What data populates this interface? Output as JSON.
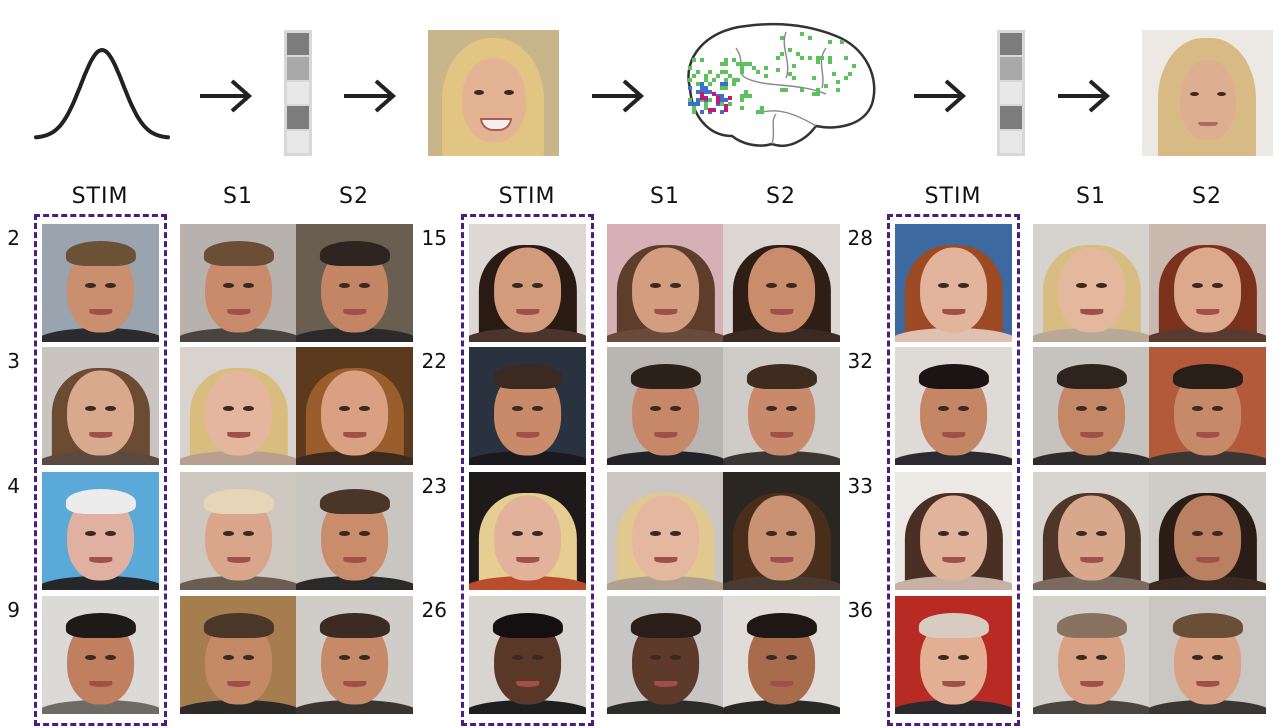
{
  "column_labels": {
    "stim": "STIM",
    "s1": "S1",
    "s2": "S2"
  },
  "colors": {
    "stim_box": "#4b1d80",
    "curve": "#222222",
    "brain_outline": "#333333",
    "voxel_green": "#5cc35c",
    "voxel_blue": "#3b6fd1",
    "voxel_magenta": "#c2187a"
  },
  "pipeline": {
    "latent_cells_1": [
      "#7c7c7c",
      "#a9a9a9",
      "#e8e8e8",
      "#7c7c7c",
      "#e8e8e8"
    ],
    "latent_cells_2": [
      "#7c7c7c",
      "#a9a9a9",
      "#e8e8e8",
      "#7c7c7c",
      "#e8e8e8"
    ]
  },
  "groups": [
    {
      "rows": [
        {
          "label": "2",
          "stim": {
            "bg": "#9aa4ae",
            "skin": "#c98f6e",
            "hair": "#6b5236",
            "long": false,
            "shirt": "#2b2b30"
          },
          "s1": {
            "bg": "#b7b2ad",
            "skin": "#c88c6c",
            "hair": "#6a4e35",
            "long": false,
            "shirt": "#4a4440"
          },
          "s2": {
            "bg": "#6a5e50",
            "skin": "#c38564",
            "hair": "#2e2520",
            "long": false,
            "shirt": "#2a2a2a"
          }
        },
        {
          "label": "3",
          "stim": {
            "bg": "#c9c4bf",
            "skin": "#d8a98c",
            "hair": "#6b4b32",
            "long": true,
            "shirt": "#5a4a40"
          },
          "s1": {
            "bg": "#d8d3cf",
            "skin": "#e3b69d",
            "hair": "#d8bd7e",
            "long": true,
            "shirt": "#b8a090"
          },
          "s2": {
            "bg": "#5b3a1e",
            "skin": "#d9a182",
            "hair": "#9a5d2c",
            "long": true,
            "shirt": "#3a2a20"
          }
        },
        {
          "label": "4",
          "stim": {
            "bg": "#5aa9d8",
            "skin": "#e0b0a0",
            "hair": "#ececec",
            "long": false,
            "shirt": "#25272b"
          },
          "s1": {
            "bg": "#cfc8c0",
            "skin": "#d9a68c",
            "hair": "#e6d6b8",
            "long": false,
            "shirt": "#6b5d52"
          },
          "s2": {
            "bg": "#c9c6c2",
            "skin": "#c98d6c",
            "hair": "#4a3626",
            "long": false,
            "shirt": "#2a2a2a"
          }
        },
        {
          "label": "9",
          "stim": {
            "bg": "#dcdad7",
            "skin": "#c08060",
            "hair": "#1e1a18",
            "long": false,
            "shirt": "#6e6a66"
          },
          "s1": {
            "bg": "#a67d4f",
            "skin": "#c48a66",
            "hair": "#4a3728",
            "long": false,
            "shirt": "#2c2a28"
          },
          "s2": {
            "bg": "#d0ccc8",
            "skin": "#c68a68",
            "hair": "#3b2b22",
            "long": false,
            "shirt": "#3a3430"
          }
        }
      ]
    },
    {
      "rows": [
        {
          "label": "15",
          "stim": {
            "bg": "#ded8d4",
            "skin": "#d29c7c",
            "hair": "#2a1a14",
            "long": true,
            "shirt": "#4a342c"
          },
          "s1": {
            "bg": "#d6b0b4",
            "skin": "#d39e80",
            "hair": "#5e3e2a",
            "long": true,
            "shirt": "#6a4a3a"
          },
          "s2": {
            "bg": "#dcd6d2",
            "skin": "#c98d6c",
            "hair": "#2e1e16",
            "long": true,
            "shirt": "#3a2a22"
          }
        },
        {
          "label": "22",
          "stim": {
            "bg": "#2a3240",
            "skin": "#c88a68",
            "hair": "#3a2a22",
            "long": false,
            "shirt": "#1a1a1e"
          },
          "s1": {
            "bg": "#b9b6b2",
            "skin": "#c68868",
            "hair": "#2c221c",
            "long": false,
            "shirt": "#222428"
          },
          "s2": {
            "bg": "#cfcbc7",
            "skin": "#c88a6a",
            "hair": "#3e2c20",
            "long": false,
            "shirt": "#3a3633"
          }
        },
        {
          "label": "23",
          "stim": {
            "bg": "#1f1a1a",
            "skin": "#e2b39a",
            "hair": "#e6cd92",
            "long": true,
            "shirt": "#b84c2c"
          },
          "s1": {
            "bg": "#cbc6c2",
            "skin": "#e3b89e",
            "hair": "#e0c890",
            "long": true,
            "shirt": "#b0a090"
          },
          "s2": {
            "bg": "#2a2622",
            "skin": "#c99272",
            "hair": "#4a2e1c",
            "long": true,
            "shirt": "#4a3a30"
          }
        },
        {
          "label": "26",
          "stim": {
            "bg": "#d8d4d0",
            "skin": "#5a3828",
            "hair": "#151010",
            "long": false,
            "shirt": "#1e1e20"
          },
          "s1": {
            "bg": "#c8c6c4",
            "skin": "#5e3a2a",
            "hair": "#2a1e18",
            "long": false,
            "shirt": "#2e2c2a"
          },
          "s2": {
            "bg": "#e0dcd8",
            "skin": "#a86c4c",
            "hair": "#1e1814",
            "long": false,
            "shirt": "#2a2826"
          }
        }
      ]
    },
    {
      "rows": [
        {
          "label": "28",
          "stim": {
            "bg": "#3c6aa0",
            "skin": "#e2b49c",
            "hair": "#9c4a24",
            "long": true,
            "shirt": "#e0c0b0"
          },
          "s1": {
            "bg": "#d6d2ce",
            "skin": "#e3b89c",
            "hair": "#d8bd82",
            "long": true,
            "shirt": "#b8a898"
          },
          "s2": {
            "bg": "#c8b8ae",
            "skin": "#dca98c",
            "hair": "#7a321c",
            "long": true,
            "shirt": "#5a3a2c"
          }
        },
        {
          "label": "32",
          "stim": {
            "bg": "#dedad6",
            "skin": "#c48664",
            "hair": "#1a1414",
            "long": false,
            "shirt": "#2a2a30"
          },
          "s1": {
            "bg": "#c6c2be",
            "skin": "#c48866",
            "hair": "#2e241e",
            "long": false,
            "shirt": "#2e2c2a"
          },
          "s2": {
            "bg": "#b25a3a",
            "skin": "#c68a68",
            "hair": "#2a1e18",
            "long": false,
            "shirt": "#3a3633"
          }
        },
        {
          "label": "33",
          "stim": {
            "bg": "#ece8e4",
            "skin": "#e0b49a",
            "hair": "#4a3024",
            "long": true,
            "shirt": "#c8b0a4"
          },
          "s1": {
            "bg": "#d8d4d0",
            "skin": "#d8a88c",
            "hair": "#4e3628",
            "long": true,
            "shirt": "#7a6a60"
          },
          "s2": {
            "bg": "#cfcbc7",
            "skin": "#b98062",
            "hair": "#2a1c16",
            "long": true,
            "shirt": "#3a2a22"
          }
        },
        {
          "label": "36",
          "stim": {
            "bg": "#b82a24",
            "skin": "#e2ae94",
            "hair": "#d8ccc0",
            "long": false,
            "shirt": "#2a2a2e"
          },
          "s1": {
            "bg": "#d4d0cc",
            "skin": "#d9a284",
            "hair": "#8a7260",
            "long": false,
            "shirt": "#4a443e"
          },
          "s2": {
            "bg": "#cac6c2",
            "skin": "#d9a284",
            "hair": "#6a4e38",
            "long": false,
            "shirt": "#3a3633"
          }
        }
      ]
    }
  ]
}
